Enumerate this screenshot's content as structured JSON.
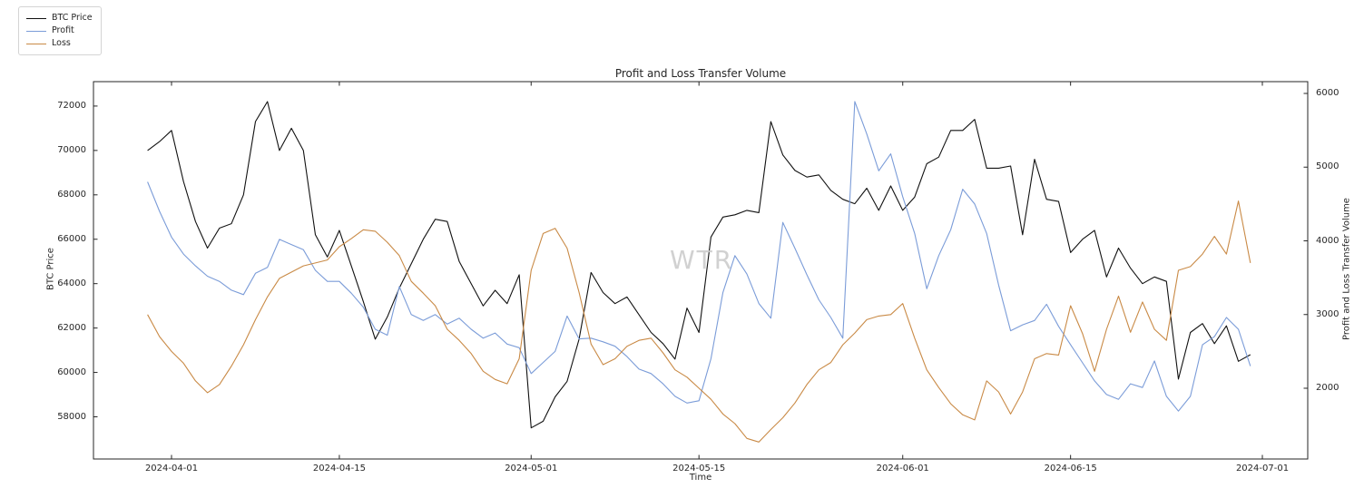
{
  "title": "Profit and Loss Transfer Volume",
  "watermark": "WTR",
  "axes": {
    "x": {
      "label": "Time",
      "ticks": [
        "2024-04-01",
        "2024-04-15",
        "2024-05-01",
        "2024-05-15",
        "2024-06-01",
        "2024-06-15",
        "2024-07-01"
      ]
    },
    "y_left": {
      "label": "BTC Price",
      "ticks": [
        58000,
        60000,
        62000,
        64000,
        66000,
        68000,
        70000,
        72000
      ]
    },
    "y_right": {
      "label": "Profit and Loss Transfer Volume",
      "ticks": [
        2000,
        3000,
        4000,
        5000,
        6000
      ]
    }
  },
  "legend": [
    {
      "label": "BTC Price",
      "color": "#111111"
    },
    {
      "label": "Profit",
      "color": "#7b9cd8"
    },
    {
      "label": "Loss",
      "color": "#c98a46"
    }
  ],
  "chart_data": {
    "type": "line",
    "title": "Profit and Loss Transfer Volume",
    "xlabel": "Time",
    "ylabel_left": "BTC Price",
    "ylabel_right": "Profit and Loss Transfer Volume",
    "grid": false,
    "legend_position": "upper-left-outside",
    "x_start_date": "2024-03-30",
    "x_end_date": "2024-06-30",
    "cadence_days": 1,
    "x_tick_dates": [
      "2024-04-01",
      "2024-04-15",
      "2024-05-01",
      "2024-05-15",
      "2024-06-01",
      "2024-06-15",
      "2024-07-01"
    ],
    "y_left_axis_range": [
      56100,
      73100
    ],
    "y_right_axis_range": [
      1040,
      6160
    ],
    "series": [
      {
        "name": "BTC Price",
        "axis": "left",
        "color": "#111111",
        "values": [
          70000,
          70400,
          70900,
          68600,
          66800,
          65600,
          66500,
          66700,
          68000,
          71300,
          72200,
          70000,
          71000,
          70000,
          66200,
          65200,
          66400,
          64800,
          63200,
          61500,
          62500,
          63800,
          64900,
          66000,
          66900,
          66800,
          65000,
          64000,
          63000,
          63700,
          63100,
          64400,
          57500,
          57800,
          58900,
          59600,
          61500,
          64500,
          63600,
          63100,
          63400,
          62600,
          61800,
          61300,
          60600,
          62900,
          61800,
          66100,
          67000,
          67100,
          67300,
          67200,
          71300,
          69800,
          69100,
          68800,
          68900,
          68200,
          67800,
          67600,
          68300,
          67300,
          68400,
          67300,
          67900,
          69400,
          69700,
          70900,
          70900,
          71400,
          69200,
          69200,
          69300,
          66200,
          69600,
          67800,
          67700,
          65400,
          66000,
          66400,
          64300,
          65600,
          64700,
          64000,
          64300,
          64100,
          59700,
          61800,
          62200,
          61300,
          62100,
          60500,
          60800
        ]
      },
      {
        "name": "Profit",
        "axis": "right",
        "color": "#7b9cd8",
        "values": [
          4800,
          4400,
          4050,
          3820,
          3660,
          3520,
          3450,
          3330,
          3270,
          3560,
          3640,
          4020,
          3950,
          3880,
          3600,
          3450,
          3450,
          3290,
          3100,
          2800,
          2720,
          3380,
          3000,
          2920,
          3000,
          2870,
          2950,
          2800,
          2680,
          2750,
          2600,
          2550,
          2200,
          2350,
          2500,
          2980,
          2670,
          2680,
          2630,
          2570,
          2430,
          2260,
          2200,
          2060,
          1890,
          1800,
          1830,
          2400,
          3300,
          3800,
          3550,
          3150,
          2950,
          4250,
          3900,
          3540,
          3200,
          2960,
          2680,
          5890,
          5450,
          4950,
          5180,
          4600,
          4100,
          3350,
          3800,
          4150,
          4700,
          4500,
          4100,
          3400,
          2780,
          2860,
          2920,
          3140,
          2840,
          2590,
          2345,
          2100,
          1915,
          1850,
          2060,
          2010,
          2370,
          1890,
          1690,
          1890,
          2590,
          2700,
          2960,
          2800,
          2300
        ]
      },
      {
        "name": "Loss",
        "axis": "right",
        "color": "#c98a46",
        "values": [
          3000,
          2700,
          2500,
          2340,
          2100,
          1940,
          2050,
          2300,
          2590,
          2930,
          3240,
          3490,
          3575,
          3660,
          3700,
          3740,
          3920,
          4030,
          4150,
          4130,
          3980,
          3800,
          3450,
          3290,
          3120,
          2800,
          2650,
          2470,
          2230,
          2120,
          2060,
          2400,
          3600,
          4100,
          4170,
          3900,
          3300,
          2600,
          2320,
          2400,
          2570,
          2650,
          2680,
          2480,
          2250,
          2150,
          2000,
          1850,
          1650,
          1520,
          1320,
          1270,
          1440,
          1600,
          1800,
          2050,
          2250,
          2350,
          2590,
          2750,
          2930,
          2980,
          3000,
          3150,
          2680,
          2250,
          2010,
          1790,
          1640,
          1570,
          2100,
          1950,
          1650,
          1950,
          2400,
          2470,
          2450,
          3120,
          2740,
          2230,
          2800,
          3250,
          2760,
          3170,
          2800,
          2650,
          3600,
          3650,
          3820,
          4060,
          3820,
          4540,
          3700
        ]
      }
    ]
  }
}
